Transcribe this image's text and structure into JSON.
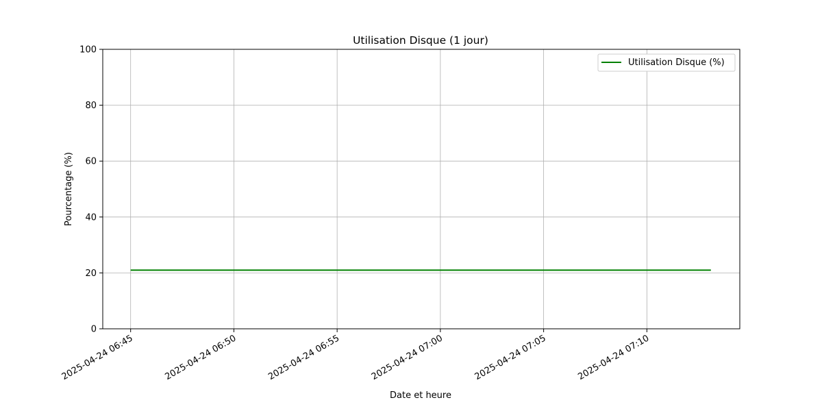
{
  "chart_data": {
    "type": "line",
    "title": "Utilisation Disque (1 jour)",
    "xlabel": "Date et heure",
    "ylabel": "Pourcentage (%)",
    "ylim": [
      0,
      100
    ],
    "xlim_minutes": [
      -1.35,
      29.5
    ],
    "grid": true,
    "legend_position": "top-right",
    "x_ticks": [
      {
        "minutes": 0,
        "label": "2025-04-24 06:45"
      },
      {
        "minutes": 5,
        "label": "2025-04-24 06:50"
      },
      {
        "minutes": 10,
        "label": "2025-04-24 06:55"
      },
      {
        "minutes": 15,
        "label": "2025-04-24 07:00"
      },
      {
        "minutes": 20,
        "label": "2025-04-24 07:05"
      },
      {
        "minutes": 25,
        "label": "2025-04-24 07:10"
      }
    ],
    "y_ticks": [
      0,
      20,
      40,
      60,
      80,
      100
    ],
    "series": [
      {
        "name": "Utilisation Disque (%)",
        "color": "#008000",
        "x_minutes": [
          0,
          28.1
        ],
        "values": [
          21,
          21
        ]
      }
    ]
  }
}
